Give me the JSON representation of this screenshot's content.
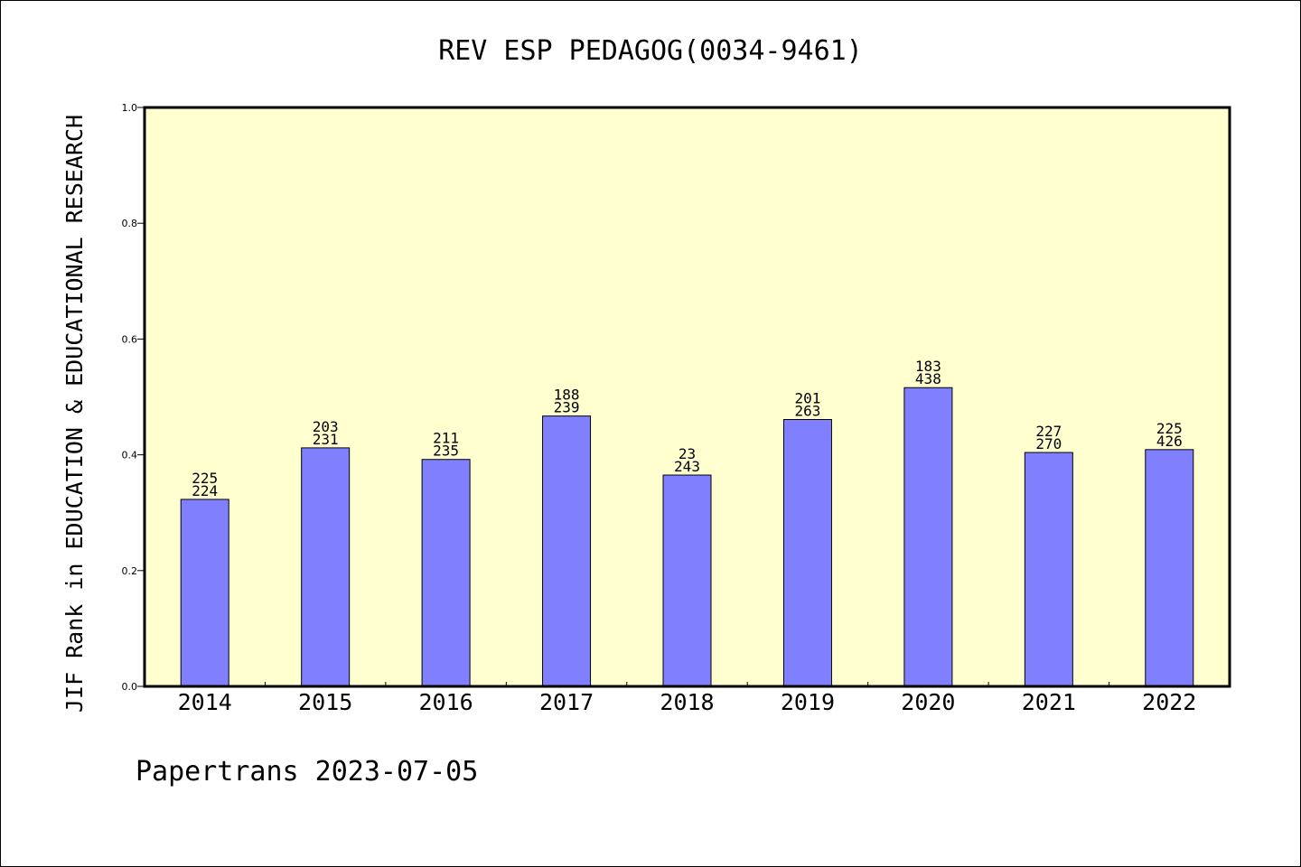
{
  "chart_data": {
    "type": "bar",
    "title": "REV ESP PEDAGOG(0034-9461)",
    "ylabel": "JIF Rank in EDUCATION & EDUCATIONAL RESEARCH",
    "xlabel": "",
    "categories": [
      "2014",
      "2015",
      "2016",
      "2017",
      "2018",
      "2019",
      "2020",
      "2021",
      "2022"
    ],
    "values": [
      0.323,
      0.412,
      0.392,
      0.467,
      0.365,
      0.461,
      0.516,
      0.404,
      0.409
    ],
    "bar_labels": [
      [
        "225",
        "224"
      ],
      [
        "203",
        "231"
      ],
      [
        "211",
        "235"
      ],
      [
        "188",
        "239"
      ],
      [
        "23",
        "243"
      ],
      [
        "201",
        "263"
      ],
      [
        "183",
        "438"
      ],
      [
        "227",
        "270"
      ],
      [
        "225",
        "426"
      ]
    ],
    "ylim": [
      0,
      1.0
    ],
    "yticks": [
      "0.0",
      "0.2",
      "0.4",
      "0.6",
      "0.8",
      "1.0"
    ],
    "grid": false,
    "colors": {
      "plot_background": "#ffffd0",
      "bar_fill": "#8080ff",
      "bar_stroke": "#000000"
    }
  },
  "footer": {
    "text": "Papertrans 2023-07-05"
  }
}
